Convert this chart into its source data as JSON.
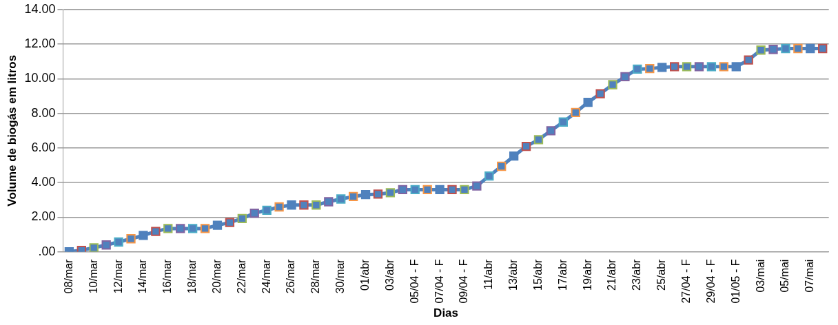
{
  "chart_data": {
    "type": "line",
    "xlabel": "Dias",
    "ylabel": "Volume de biogás em litros",
    "categories": [
      "08/mar",
      null,
      "10/mar",
      null,
      "12/mar",
      null,
      "14/mar",
      null,
      "16/mar",
      null,
      "18/mar",
      null,
      "20/mar",
      null,
      "22/mar",
      null,
      "24/mar",
      null,
      "26/mar",
      null,
      "28/mar",
      null,
      "30/mar",
      null,
      "01/abr",
      null,
      "03/abr",
      null,
      "05/04 - F",
      null,
      "07/04 - F",
      null,
      "09/04 - F",
      null,
      "11/abr",
      null,
      "13/abr",
      null,
      "15/abr",
      null,
      "17/abr",
      null,
      "19/abr",
      null,
      "21/abr",
      null,
      "23/abr",
      null,
      "25/abr",
      null,
      "27/04 - F",
      null,
      "29/04 - F",
      null,
      "01/05 - F",
      null,
      "03/mai",
      null,
      "05/mai",
      null,
      "07/mai",
      null
    ],
    "series": [
      {
        "color": "#4f81bd",
        "values": [
          0,
          0.08,
          0.23,
          0.39,
          0.56,
          0.75,
          0.94,
          1.17,
          1.34,
          1.34,
          1.34,
          1.34,
          1.53,
          1.69,
          1.92,
          2.23,
          2.4,
          2.59,
          2.7,
          2.7,
          2.7,
          2.89,
          3.05,
          3.19,
          3.3,
          3.33,
          3.41,
          3.59,
          3.59,
          3.59,
          3.59,
          3.59,
          3.59,
          3.8,
          4.38,
          4.94,
          5.53,
          6.09,
          6.48,
          7.0,
          7.5,
          8.05,
          8.64,
          9.14,
          9.66,
          10.12,
          10.56,
          10.59,
          10.66,
          10.7,
          10.7,
          10.7,
          10.7,
          10.7,
          10.7,
          11.09,
          11.66,
          11.7,
          11.75,
          11.75,
          11.75,
          11.75
        ],
        "colors": [
          "#4f81bd",
          "#c0504d",
          "#9bbb59",
          "#8064a2",
          "#4bacc6",
          "#f79646",
          "#4f81bd",
          "#c0504d",
          "#9bbb59",
          "#8064a2",
          "#4bacc6",
          "#f79646",
          "#4f81bd",
          "#c0504d",
          "#9bbb59",
          "#8064a2",
          "#4bacc6",
          "#f79646",
          "#4f81bd",
          "#c0504d",
          "#9bbb59",
          "#8064a2",
          "#4bacc6",
          "#f79646",
          "#4f81bd",
          "#c0504d",
          "#9bbb59",
          "#8064a2",
          "#4bacc6",
          "#f79646",
          "#4f81bd",
          "#c0504d",
          "#9bbb59",
          "#8064a2",
          "#4bacc6",
          "#f79646",
          "#4f81bd",
          "#c0504d",
          "#9bbb59",
          "#8064a2",
          "#4bacc6",
          "#f79646",
          "#4f81bd",
          "#c0504d",
          "#9bbb59",
          "#8064a2",
          "#4bacc6",
          "#f79646",
          "#4f81bd",
          "#c0504d",
          "#9bbb59",
          "#8064a2",
          "#4bacc6",
          "#f79646",
          "#4f81bd",
          "#c0504d",
          "#9bbb59",
          "#8064a2",
          "#4bacc6",
          "#f79646",
          "#4f81bd",
          "#c0504d"
        ]
      }
    ],
    "ylim": [
      0,
      14
    ],
    "yticks": [
      {
        "value": 0,
        "label": ".00"
      },
      {
        "value": 2,
        "label": "2.00"
      },
      {
        "value": 4,
        "label": "4.00"
      },
      {
        "value": 6,
        "label": "6.00"
      },
      {
        "value": 8,
        "label": "8.00"
      },
      {
        "value": 10,
        "label": "10.00"
      },
      {
        "value": 12,
        "label": "12.00"
      },
      {
        "value": 14,
        "label": "14.00"
      }
    ],
    "grid": "y",
    "marker": "square",
    "line_style": "solid"
  }
}
